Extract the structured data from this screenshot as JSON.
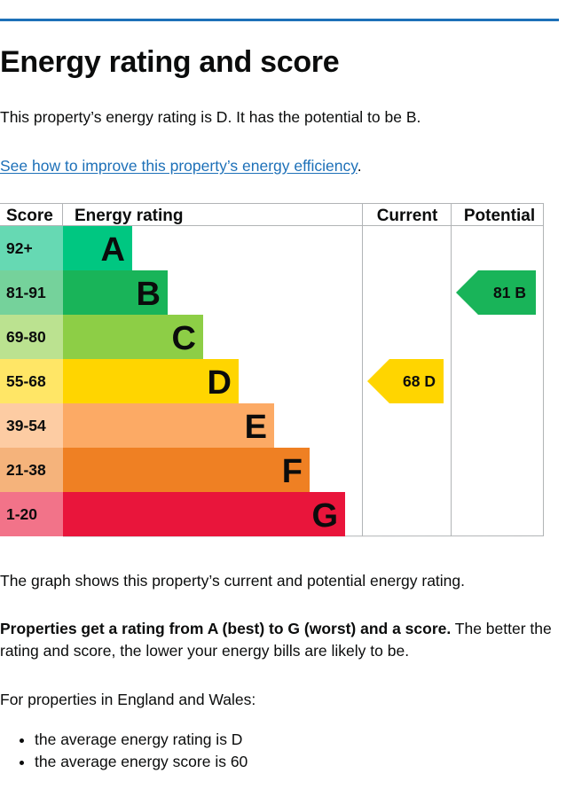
{
  "heading": "Energy rating and score",
  "intro": "This property’s energy rating is D. It has the potential to be B.",
  "improve_link": "See how to improve this property’s energy efficiency",
  "improve_link_suffix": ".",
  "chart_data": {
    "type": "bar",
    "columns": [
      "Score",
      "Energy rating",
      "Current",
      "Potential"
    ],
    "bands": [
      {
        "letter": "A",
        "score": "92+",
        "color": "#00c781",
        "score_color": "#66d9b3"
      },
      {
        "letter": "B",
        "score": "81-91",
        "color": "#19b459",
        "score_color": "#75d29b"
      },
      {
        "letter": "C",
        "score": "69-80",
        "color": "#8dce46",
        "score_color": "#bbe290"
      },
      {
        "letter": "D",
        "score": "55-68",
        "color": "#ffd500",
        "score_color": "#ffe666"
      },
      {
        "letter": "E",
        "score": "39-54",
        "color": "#fcaa65",
        "score_color": "#fdcca3"
      },
      {
        "letter": "F",
        "score": "21-38",
        "color": "#ef8023",
        "score_color": "#f5b37b"
      },
      {
        "letter": "G",
        "score": "1-20",
        "color": "#e9153b",
        "score_color": "#f27389"
      }
    ],
    "current": {
      "score": 68,
      "band": "D",
      "label": "68  D",
      "color": "#ffd500"
    },
    "potential": {
      "score": 81,
      "band": "B",
      "label": "81  B",
      "color": "#19b459"
    }
  },
  "graph_note": "The graph shows this property’s current and potential energy rating.",
  "rating_note_bold": "Properties get a rating from A (best) to G (worst) and a score.",
  "rating_note_rest": " The better the rating and score, the lower your energy bills are likely to be.",
  "ew_note": "For properties in England and Wales:",
  "averages": [
    "the average energy rating is D",
    "the average energy score is 60"
  ]
}
